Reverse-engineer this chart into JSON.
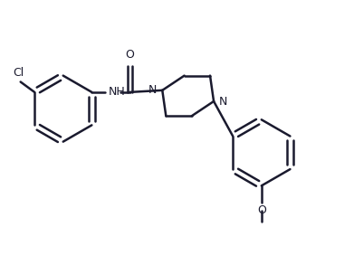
{
  "bg_color": "#ffffff",
  "line_color": "#1a1a2e",
  "line_width": 1.8,
  "font_size": 9,
  "fig_width": 3.91,
  "fig_height": 2.93,
  "dpi": 100,
  "xlim": [
    0,
    9.5
  ],
  "ylim": [
    0,
    7.0
  ]
}
